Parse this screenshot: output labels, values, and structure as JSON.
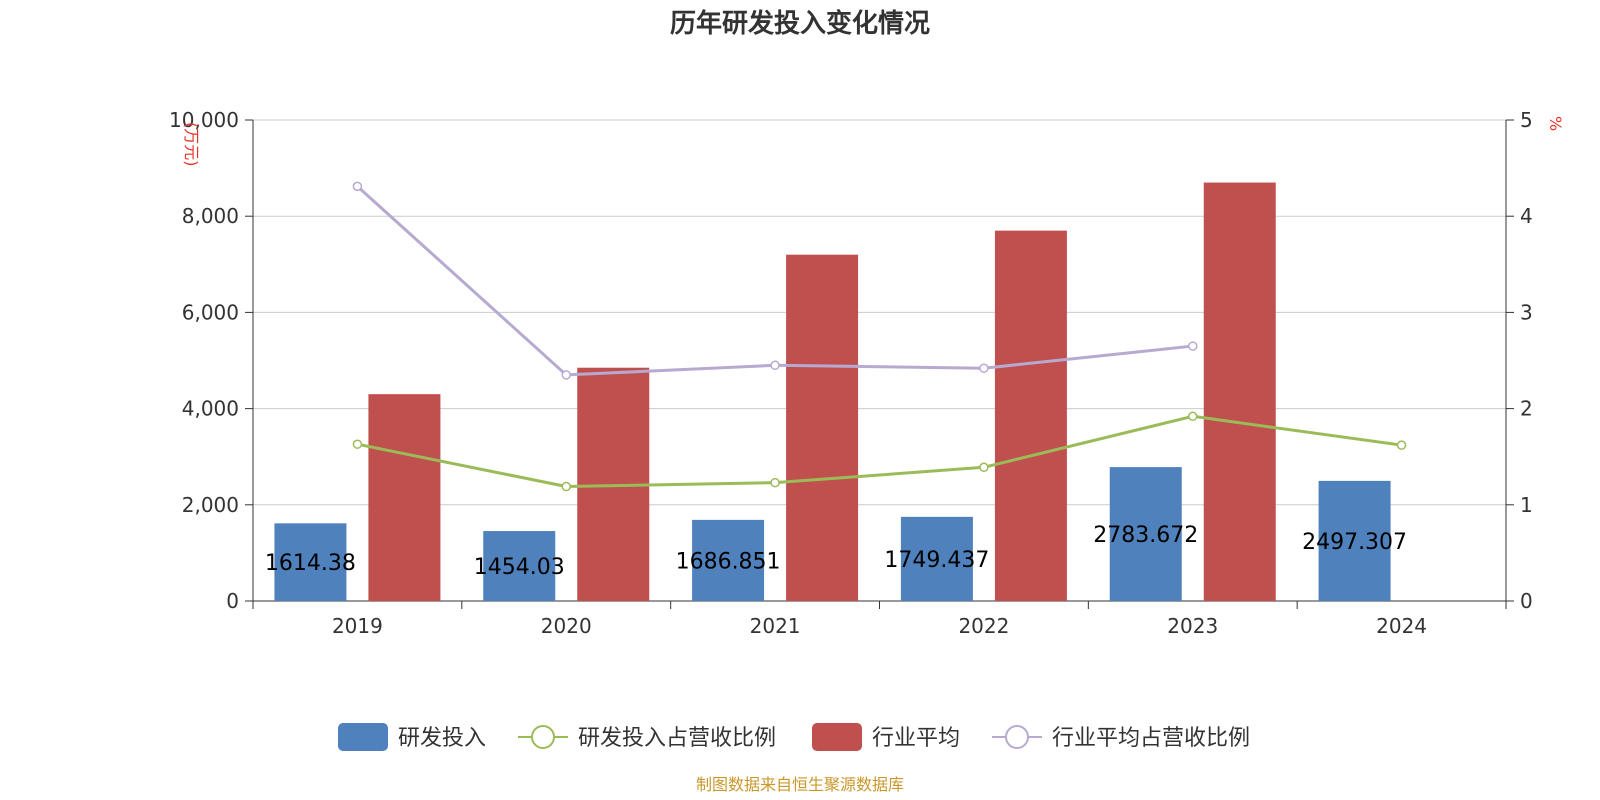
{
  "chart_data": {
    "type": "bar",
    "title": "历年研发投入变化情况",
    "categories": [
      "2019",
      "2020",
      "2021",
      "2022",
      "2023",
      "2024"
    ],
    "y_left": {
      "unit": "(万元)",
      "min": 0,
      "max": 10000,
      "ticks": [
        "0",
        "2,000",
        "4,000",
        "6,000",
        "8,000",
        "10,000"
      ]
    },
    "y_right": {
      "unit": "%",
      "min": 0,
      "max": 5,
      "ticks": [
        "0",
        "1",
        "2",
        "3",
        "4",
        "5"
      ]
    },
    "grid": true,
    "legend_position": "bottom",
    "series": [
      {
        "name": "研发投入",
        "type": "bar",
        "axis": "left",
        "color": "#4f81bd",
        "values": [
          1614.38,
          1454.03,
          1686.851,
          1749.437,
          2783.672,
          2497.307
        ],
        "labels": [
          "1614.38",
          "1454.03",
          "1686.851",
          "1749.437",
          "2783.672",
          "2497.307"
        ]
      },
      {
        "name": "研发投入占营收比例",
        "type": "line",
        "axis": "right",
        "color": "#9bbb59",
        "values": [
          1.63,
          1.19,
          1.23,
          1.39,
          1.92,
          1.62
        ]
      },
      {
        "name": "行业平均",
        "type": "bar",
        "axis": "left",
        "color": "#c0504d",
        "values": [
          4300,
          4850,
          7200,
          7700,
          8700,
          null
        ]
      },
      {
        "name": "行业平均占营收比例",
        "type": "line",
        "axis": "right",
        "color": "#b7a9d0",
        "values": [
          4.31,
          2.35,
          2.45,
          2.42,
          2.65,
          null
        ]
      }
    ]
  },
  "source": "制图数据来自恒生聚源数据库"
}
